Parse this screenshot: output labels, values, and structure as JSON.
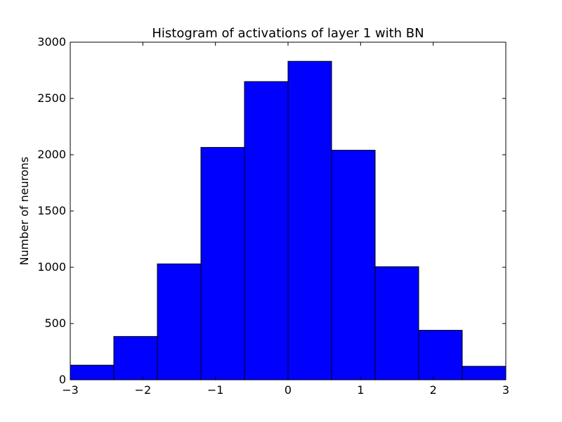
{
  "chart_data": {
    "type": "bar",
    "title": "Histogram of activations of layer 1  with BN",
    "xlabel": "",
    "ylabel": "Number of neurons",
    "xlim": [
      -3,
      3
    ],
    "ylim": [
      0,
      3000
    ],
    "bin_edges": [
      -3,
      -2.4,
      -1.8,
      -1.2,
      -0.6,
      0,
      0.6,
      1.2,
      1.8,
      2.4,
      3
    ],
    "values": [
      130,
      385,
      1030,
      2065,
      2650,
      2830,
      2040,
      1005,
      440,
      120
    ],
    "xticks": [
      -3,
      -2,
      -1,
      0,
      1,
      2,
      3
    ],
    "xtick_labels": [
      "−3",
      "−2",
      "−1",
      "0",
      "1",
      "2",
      "3"
    ],
    "yticks": [
      0,
      500,
      1000,
      1500,
      2000,
      2500,
      3000
    ],
    "ytick_labels": [
      "0",
      "500",
      "1000",
      "1500",
      "2000",
      "2500",
      "3000"
    ],
    "bar_color": "#0000ff",
    "edge_color": "#000000",
    "grid": false,
    "legend": "none"
  }
}
